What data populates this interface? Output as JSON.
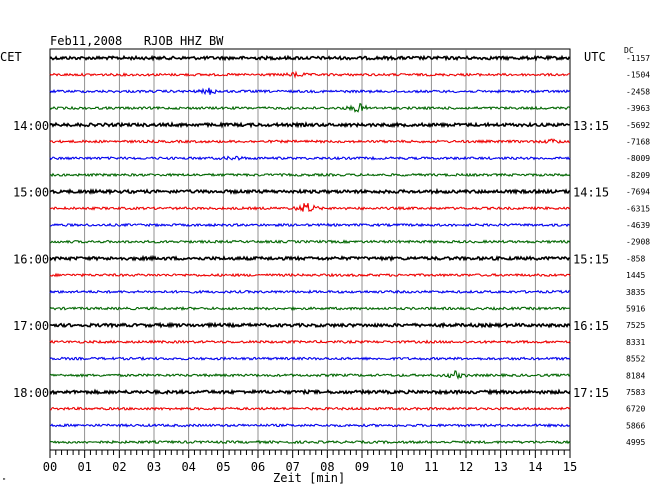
{
  "header": {
    "title": "Feb11,2008   RJOB HHZ BW",
    "left_zone": "CET",
    "right_zone": "UTC",
    "dc_label": "DC"
  },
  "footer": {
    "xlabel": "Zeit [min]",
    "corner_mark": "\""
  },
  "chart_data": {
    "type": "line",
    "title": "Feb11,2008   RJOB HHZ BW",
    "xlabel": "Zeit [min]",
    "xlim": [
      0,
      15
    ],
    "x_ticks": [
      "00",
      "01",
      "02",
      "03",
      "04",
      "05",
      "06",
      "07",
      "08",
      "09",
      "10",
      "11",
      "12",
      "13",
      "14",
      "15"
    ],
    "left_hour_labels": [
      {
        "row": 4,
        "label": "14:00"
      },
      {
        "row": 8,
        "label": "15:00"
      },
      {
        "row": 12,
        "label": "16:00"
      },
      {
        "row": 16,
        "label": "17:00"
      },
      {
        "row": 20,
        "label": "18:00"
      }
    ],
    "right_hour_labels": [
      {
        "row": 4,
        "label": "13:15"
      },
      {
        "row": 8,
        "label": "14:15"
      },
      {
        "row": 12,
        "label": "15:15"
      },
      {
        "row": 16,
        "label": "16:15"
      },
      {
        "row": 20,
        "label": "17:15"
      }
    ],
    "trace_colors": [
      "#000000",
      "#ee0000",
      "#0000ee",
      "#006600"
    ],
    "dc_offsets": [
      "-1157",
      "-1504",
      "-2458",
      "-3963",
      "-5692",
      "-7168",
      "-8009",
      "-8209",
      "-7694",
      "-6315",
      "-4639",
      "-2908",
      "-858",
      "1445",
      "3835",
      "5916",
      "7525",
      "8331",
      "8552",
      "8184",
      "7583",
      "6720",
      "5866",
      "4995"
    ],
    "events": [
      {
        "row": 1,
        "minute": 7.1,
        "strength": 0.35
      },
      {
        "row": 2,
        "minute": 4.6,
        "strength": 0.45
      },
      {
        "row": 3,
        "minute": 8.9,
        "strength": 0.7
      },
      {
        "row": 5,
        "minute": 14.5,
        "strength": 0.3
      },
      {
        "row": 6,
        "minute": 5.3,
        "strength": 0.3
      },
      {
        "row": 9,
        "minute": 7.4,
        "strength": 1.0
      },
      {
        "row": 19,
        "minute": 11.7,
        "strength": 0.55
      }
    ],
    "grid": true
  }
}
